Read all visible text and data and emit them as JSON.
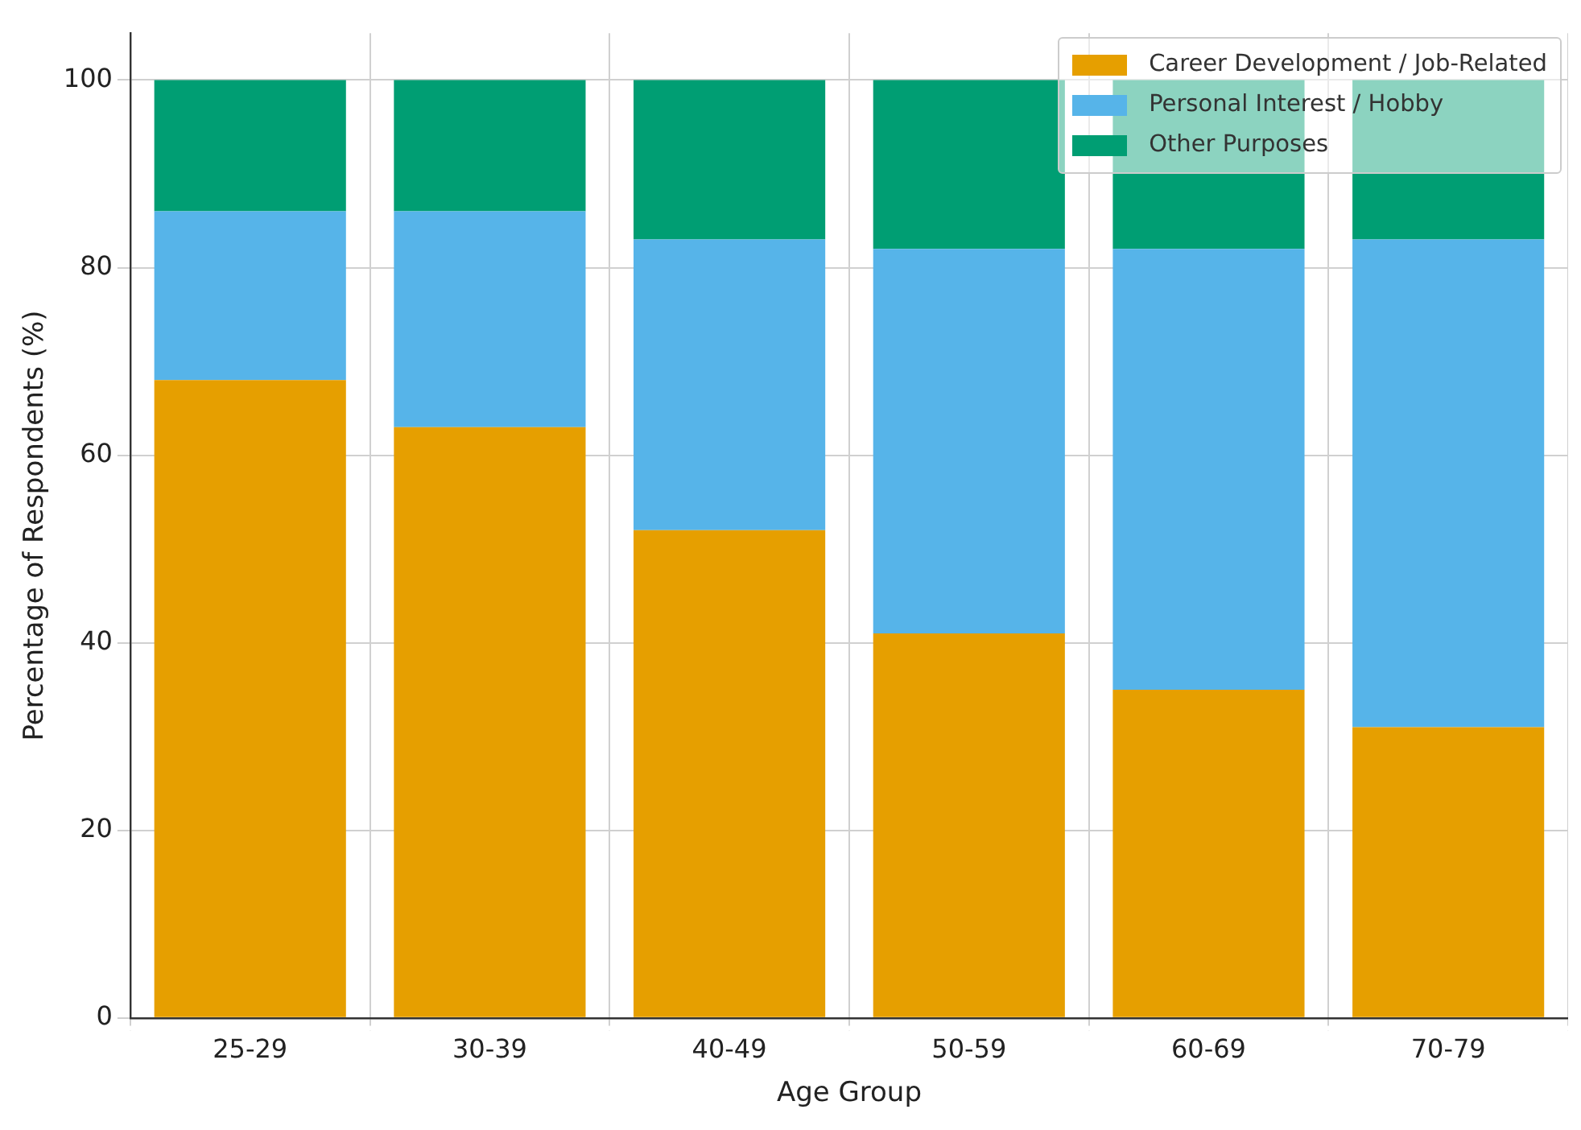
{
  "chart_data": {
    "type": "bar",
    "stacked": true,
    "xlabel": "Age Group",
    "ylabel": "Percentage of Respondents (%)",
    "categories": [
      "25-29",
      "30-39",
      "40-49",
      "50-59",
      "60-69",
      "70-79"
    ],
    "series": [
      {
        "name": "Career Development / Job-Related",
        "color": "#e69f00",
        "values": [
          68,
          63,
          52,
          41,
          35,
          31
        ]
      },
      {
        "name": "Personal Interest / Hobby",
        "color": "#56b4e9",
        "values": [
          18,
          23,
          31,
          41,
          47,
          52
        ]
      },
      {
        "name": "Other Purposes",
        "color": "#009e73",
        "values": [
          14,
          14,
          17,
          18,
          18,
          17
        ]
      }
    ],
    "ylim": [
      0,
      105
    ],
    "yticks": [
      0,
      20,
      40,
      60,
      80,
      100
    ],
    "grid": true,
    "legend": "top right"
  }
}
